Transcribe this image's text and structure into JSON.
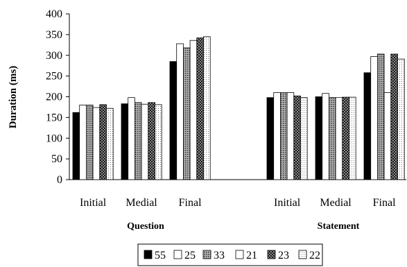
{
  "chart_data": {
    "type": "bar",
    "ylabel": "Duration (ms)",
    "ylim": [
      0,
      400
    ],
    "yticks": [
      0,
      50,
      100,
      150,
      200,
      250,
      300,
      350,
      400
    ],
    "groups": [
      "Question",
      "Statement"
    ],
    "categories": [
      "Initial",
      "Medial",
      "Final"
    ],
    "legend_position": "bottom",
    "series": [
      {
        "name": "55",
        "pattern": "solid-black",
        "values": {
          "Question": [
            162,
            183,
            285
          ],
          "Statement": [
            198,
            200,
            258
          ]
        }
      },
      {
        "name": "25",
        "pattern": "white",
        "values": {
          "Question": [
            180,
            198,
            328
          ],
          "Statement": [
            210,
            208,
            297
          ]
        }
      },
      {
        "name": "33",
        "pattern": "dense-grid",
        "values": {
          "Question": [
            180,
            186,
            318
          ],
          "Statement": [
            210,
            198,
            303
          ]
        }
      },
      {
        "name": "21",
        "pattern": "white",
        "values": {
          "Question": [
            174,
            182,
            336
          ],
          "Statement": [
            210,
            198,
            210
          ]
        }
      },
      {
        "name": "23",
        "pattern": "dark-checker",
        "values": {
          "Question": [
            181,
            186,
            342
          ],
          "Statement": [
            202,
            199,
            303
          ]
        }
      },
      {
        "name": "22",
        "pattern": "light-dots",
        "values": {
          "Question": [
            172,
            181,
            345
          ],
          "Statement": [
            198,
            199,
            291
          ]
        }
      }
    ]
  }
}
